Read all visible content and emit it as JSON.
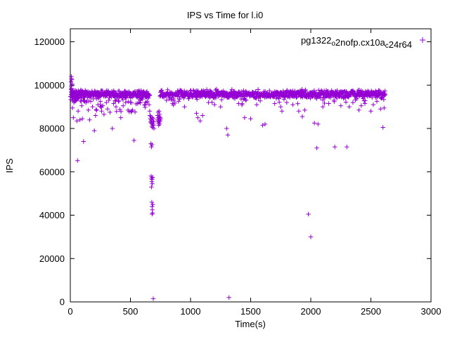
{
  "window": {
    "background": "#ffffff"
  },
  "chart_data": {
    "type": "scatter",
    "title": "IPS vs Time for l.i0",
    "xlabel": "Time(s)",
    "ylabel": "IPS",
    "xlim": [
      0,
      3000
    ],
    "ylim": [
      0,
      126000
    ],
    "xticks": [
      0,
      500,
      1000,
      1500,
      2000,
      2500,
      3000
    ],
    "yticks": [
      0,
      20000,
      40000,
      60000,
      80000,
      100000,
      120000
    ],
    "grid": false,
    "legend": {
      "position": "top-right",
      "label_plain": "pg1322_o2nofp.cx10a_c24r64",
      "segments": [
        {
          "t": "pg1322",
          "sub": false
        },
        {
          "t": "o",
          "sub": true
        },
        {
          "t": "2nofp.cx10a",
          "sub": false
        },
        {
          "t": "c",
          "sub": true
        },
        {
          "t": "24r64",
          "sub": false
        }
      ]
    },
    "marker": {
      "shape": "plus",
      "color": "#9400d3",
      "size": 7
    },
    "band": {
      "x_start": 2,
      "x_end": 2620,
      "step": 2.2,
      "y_center": 95800,
      "y_jitter": 900,
      "gap": [
        662,
        744
      ],
      "seed": 42,
      "low_fringe_chance": 0.05,
      "low_fringe_depth": 3000
    },
    "early_extra": {
      "x_start": 2,
      "x_end": 140,
      "count": 55,
      "y_min": 92500,
      "y_max": 97800
    },
    "mid_extra": {
      "x_start": 140,
      "x_end": 660,
      "count": 28,
      "y_min": 87500,
      "y_max": 94500
    },
    "outliers": [
      [
        8,
        104000
      ],
      [
        10,
        103000
      ],
      [
        12,
        102500
      ],
      [
        6,
        101500
      ],
      [
        15,
        100500
      ],
      [
        9,
        99500
      ],
      [
        10,
        98500
      ],
      [
        20,
        97500
      ],
      [
        18,
        89500
      ],
      [
        25,
        85000
      ],
      [
        30,
        92000
      ],
      [
        40,
        95500
      ],
      [
        55,
        83500
      ],
      [
        60,
        65200
      ],
      [
        65,
        88000
      ],
      [
        80,
        84000
      ],
      [
        95,
        90500
      ],
      [
        100,
        84500
      ],
      [
        110,
        74000
      ],
      [
        130,
        92000
      ],
      [
        150,
        88500
      ],
      [
        160,
        84000
      ],
      [
        170,
        92500
      ],
      [
        185,
        90000
      ],
      [
        200,
        79000
      ],
      [
        210,
        86000
      ],
      [
        230,
        91000
      ],
      [
        250,
        92500
      ],
      [
        260,
        88000
      ],
      [
        270,
        90500
      ],
      [
        280,
        86500
      ],
      [
        300,
        92000
      ],
      [
        310,
        89000
      ],
      [
        320,
        93000
      ],
      [
        330,
        87500
      ],
      [
        350,
        80000
      ],
      [
        360,
        91500
      ],
      [
        380,
        90000
      ],
      [
        400,
        92500
      ],
      [
        420,
        85000
      ],
      [
        440,
        90500
      ],
      [
        460,
        92000
      ],
      [
        480,
        88500
      ],
      [
        500,
        92000
      ],
      [
        510,
        88000
      ],
      [
        530,
        74500
      ],
      [
        560,
        91500
      ],
      [
        580,
        93000
      ],
      [
        600,
        93500
      ],
      [
        620,
        91000
      ],
      [
        640,
        92500
      ],
      [
        650,
        94000
      ],
      [
        655,
        91000
      ],
      [
        660,
        88000
      ],
      [
        662,
        86000
      ],
      [
        665,
        84500
      ],
      [
        668,
        83000
      ],
      [
        670,
        85500
      ],
      [
        672,
        82500
      ],
      [
        674,
        84000
      ],
      [
        676,
        83500
      ],
      [
        678,
        81000
      ],
      [
        680,
        85000
      ],
      [
        682,
        82000
      ],
      [
        684,
        80500
      ],
      [
        686,
        83500
      ],
      [
        688,
        82000
      ],
      [
        690,
        84500
      ],
      [
        692,
        81500
      ],
      [
        694,
        83000
      ],
      [
        696,
        80000
      ],
      [
        670,
        73000
      ],
      [
        675,
        71500
      ],
      [
        680,
        72500
      ],
      [
        672,
        58000
      ],
      [
        676,
        57000
      ],
      [
        678,
        55500
      ],
      [
        680,
        56500
      ],
      [
        682,
        54500
      ],
      [
        684,
        57500
      ],
      [
        675,
        53000
      ],
      [
        678,
        46000
      ],
      [
        680,
        44000
      ],
      [
        682,
        42500
      ],
      [
        684,
        41000
      ],
      [
        686,
        45000
      ],
      [
        680,
        40500
      ],
      [
        690,
        1500
      ],
      [
        725,
        86000
      ],
      [
        728,
        84000
      ],
      [
        730,
        83500
      ],
      [
        732,
        85000
      ],
      [
        734,
        82500
      ],
      [
        736,
        84500
      ],
      [
        738,
        83000
      ],
      [
        740,
        85500
      ],
      [
        742,
        82000
      ],
      [
        744,
        84000
      ],
      [
        746,
        83500
      ],
      [
        748,
        85000
      ],
      [
        750,
        84500
      ],
      [
        735,
        81500
      ],
      [
        742,
        86500
      ],
      [
        730,
        87500
      ],
      [
        738,
        88000
      ],
      [
        800,
        93000
      ],
      [
        850,
        91500
      ],
      [
        900,
        92500
      ],
      [
        950,
        90000
      ],
      [
        1050,
        87000
      ],
      [
        1060,
        85000
      ],
      [
        1080,
        83500
      ],
      [
        1100,
        86000
      ],
      [
        1150,
        92000
      ],
      [
        1200,
        91000
      ],
      [
        1250,
        90000
      ],
      [
        1300,
        80000
      ],
      [
        1310,
        77000
      ],
      [
        1320,
        2000
      ],
      [
        1400,
        91500
      ],
      [
        1450,
        85000
      ],
      [
        1500,
        84500
      ],
      [
        1550,
        91000
      ],
      [
        1600,
        81500
      ],
      [
        1620,
        82000
      ],
      [
        1700,
        91500
      ],
      [
        1750,
        90000
      ],
      [
        1760,
        88000
      ],
      [
        1800,
        92000
      ],
      [
        1850,
        91000
      ],
      [
        1900,
        88000
      ],
      [
        1930,
        85500
      ],
      [
        1950,
        88500
      ],
      [
        1980,
        40500
      ],
      [
        2000,
        30000
      ],
      [
        2030,
        82500
      ],
      [
        2050,
        71000
      ],
      [
        2060,
        82000
      ],
      [
        2100,
        90000
      ],
      [
        2150,
        91500
      ],
      [
        2200,
        71500
      ],
      [
        2250,
        90500
      ],
      [
        2300,
        71500
      ],
      [
        2320,
        90000
      ],
      [
        2350,
        92000
      ],
      [
        2400,
        88500
      ],
      [
        2420,
        90500
      ],
      [
        2450,
        91500
      ],
      [
        2500,
        88000
      ],
      [
        2520,
        91000
      ],
      [
        2550,
        92500
      ],
      [
        2580,
        89000
      ],
      [
        2600,
        80500
      ],
      [
        2610,
        89500
      ]
    ]
  }
}
